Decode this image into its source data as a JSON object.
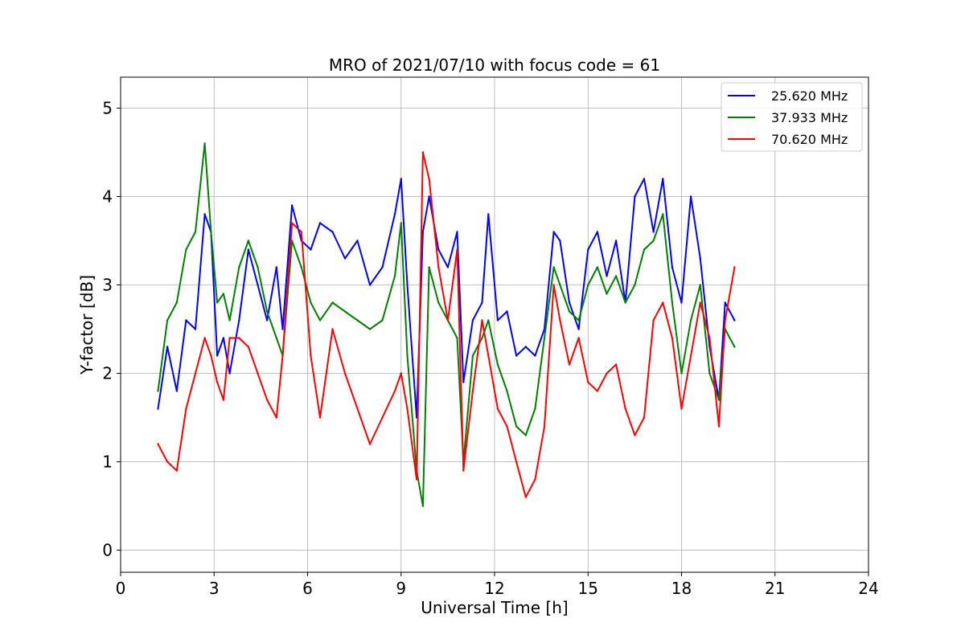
{
  "chart_data": {
    "type": "line",
    "title": "MRO of 2021/07/10 with focus code = 61",
    "xlabel": "Universal Time [h]",
    "ylabel": "Y-factor [dB]",
    "xlim": [
      0,
      24
    ],
    "ylim": [
      -0.25,
      5.35
    ],
    "xticks": [
      "0",
      "3",
      "6",
      "9",
      "12",
      "15",
      "18",
      "21",
      "24"
    ],
    "yticks": [
      "0",
      "1",
      "2",
      "3",
      "4",
      "5"
    ],
    "grid": true,
    "legend_position": "top-right",
    "series": [
      {
        "name": "25.620 MHz",
        "color": "#0000ff",
        "x": [
          1.2,
          1.5,
          1.8,
          2.1,
          2.4,
          2.7,
          2.9,
          3.1,
          3.3,
          3.5,
          3.8,
          4.1,
          4.4,
          4.7,
          5.0,
          5.2,
          5.5,
          5.8,
          6.1,
          6.4,
          6.8,
          7.2,
          7.6,
          8.0,
          8.4,
          8.8,
          9.0,
          9.2,
          9.5,
          9.7,
          9.9,
          10.2,
          10.5,
          10.8,
          11.0,
          11.3,
          11.6,
          11.8,
          12.1,
          12.4,
          12.7,
          13.0,
          13.3,
          13.6,
          13.9,
          14.1,
          14.4,
          14.7,
          15.0,
          15.3,
          15.6,
          15.9,
          16.2,
          16.5,
          16.8,
          17.1,
          17.4,
          17.7,
          18.0,
          18.3,
          18.6,
          18.9,
          19.2,
          19.4,
          19.7
        ],
        "y": [
          1.6,
          2.3,
          1.8,
          2.6,
          2.5,
          3.8,
          3.6,
          2.2,
          2.4,
          2.0,
          2.6,
          3.4,
          3.0,
          2.6,
          3.2,
          2.5,
          3.9,
          3.5,
          3.4,
          3.7,
          3.6,
          3.3,
          3.5,
          3.0,
          3.2,
          3.8,
          4.2,
          3.0,
          1.5,
          3.6,
          4.0,
          3.4,
          3.2,
          3.6,
          1.9,
          2.6,
          2.8,
          3.8,
          2.6,
          2.7,
          2.2,
          2.3,
          2.2,
          2.5,
          3.6,
          3.5,
          2.8,
          2.5,
          3.4,
          3.6,
          3.1,
          3.5,
          2.8,
          4.0,
          4.2,
          3.6,
          4.2,
          3.2,
          2.8,
          4.0,
          3.3,
          2.3,
          1.7,
          2.8,
          2.6
        ]
      },
      {
        "name": "37.933 MHz",
        "color": "#008000",
        "x": [
          1.2,
          1.5,
          1.8,
          2.1,
          2.4,
          2.7,
          2.9,
          3.1,
          3.3,
          3.5,
          3.8,
          4.1,
          4.4,
          4.7,
          5.0,
          5.2,
          5.5,
          5.8,
          6.1,
          6.4,
          6.8,
          7.2,
          7.6,
          8.0,
          8.4,
          8.8,
          9.0,
          9.2,
          9.5,
          9.7,
          9.9,
          10.2,
          10.5,
          10.8,
          11.0,
          11.3,
          11.6,
          11.8,
          12.1,
          12.4,
          12.7,
          13.0,
          13.3,
          13.6,
          13.9,
          14.1,
          14.4,
          14.7,
          15.0,
          15.3,
          15.6,
          15.9,
          16.2,
          16.5,
          16.8,
          17.1,
          17.4,
          17.7,
          18.0,
          18.3,
          18.6,
          18.9,
          19.2,
          19.4,
          19.7
        ],
        "y": [
          1.8,
          2.6,
          2.8,
          3.4,
          3.6,
          4.6,
          3.6,
          2.8,
          2.9,
          2.6,
          3.2,
          3.5,
          3.2,
          2.7,
          2.4,
          2.2,
          3.5,
          3.2,
          2.8,
          2.6,
          2.8,
          2.7,
          2.6,
          2.5,
          2.6,
          3.1,
          3.7,
          2.2,
          0.9,
          0.5,
          3.2,
          2.8,
          2.6,
          2.4,
          1.0,
          2.2,
          2.4,
          2.6,
          2.1,
          1.8,
          1.4,
          1.3,
          1.6,
          2.4,
          3.2,
          3.0,
          2.7,
          2.6,
          3.0,
          3.2,
          2.9,
          3.1,
          2.8,
          3.0,
          3.4,
          3.5,
          3.8,
          2.8,
          2.0,
          2.6,
          3.0,
          2.0,
          1.7,
          2.5,
          2.3
        ]
      },
      {
        "name": "70.620 MHz",
        "color": "#ff0000",
        "x": [
          1.2,
          1.5,
          1.8,
          2.1,
          2.4,
          2.7,
          2.9,
          3.1,
          3.3,
          3.5,
          3.8,
          4.1,
          4.4,
          4.7,
          5.0,
          5.2,
          5.5,
          5.8,
          6.1,
          6.4,
          6.8,
          7.2,
          7.6,
          8.0,
          8.4,
          8.8,
          9.0,
          9.2,
          9.5,
          9.7,
          9.9,
          10.2,
          10.5,
          10.8,
          11.0,
          11.3,
          11.6,
          11.8,
          12.1,
          12.4,
          12.7,
          13.0,
          13.3,
          13.6,
          13.9,
          14.1,
          14.4,
          14.7,
          15.0,
          15.3,
          15.6,
          15.9,
          16.2,
          16.5,
          16.8,
          17.1,
          17.4,
          17.7,
          18.0,
          18.3,
          18.6,
          18.9,
          19.2,
          19.4,
          19.7
        ],
        "y": [
          1.2,
          1.0,
          0.9,
          1.6,
          2.0,
          2.4,
          2.2,
          1.9,
          1.7,
          2.4,
          2.4,
          2.3,
          2.0,
          1.7,
          1.5,
          2.2,
          3.7,
          3.6,
          2.2,
          1.5,
          2.5,
          2.0,
          1.6,
          1.2,
          1.5,
          1.8,
          2.0,
          1.6,
          0.8,
          4.5,
          4.2,
          3.2,
          2.6,
          3.4,
          0.9,
          1.8,
          2.6,
          2.2,
          1.6,
          1.4,
          1.0,
          0.6,
          0.8,
          1.4,
          3.0,
          2.6,
          2.1,
          2.4,
          1.9,
          1.8,
          2.0,
          2.1,
          1.6,
          1.3,
          1.5,
          2.6,
          2.8,
          2.4,
          1.6,
          2.2,
          2.8,
          2.4,
          1.4,
          2.6,
          3.2
        ]
      }
    ]
  }
}
